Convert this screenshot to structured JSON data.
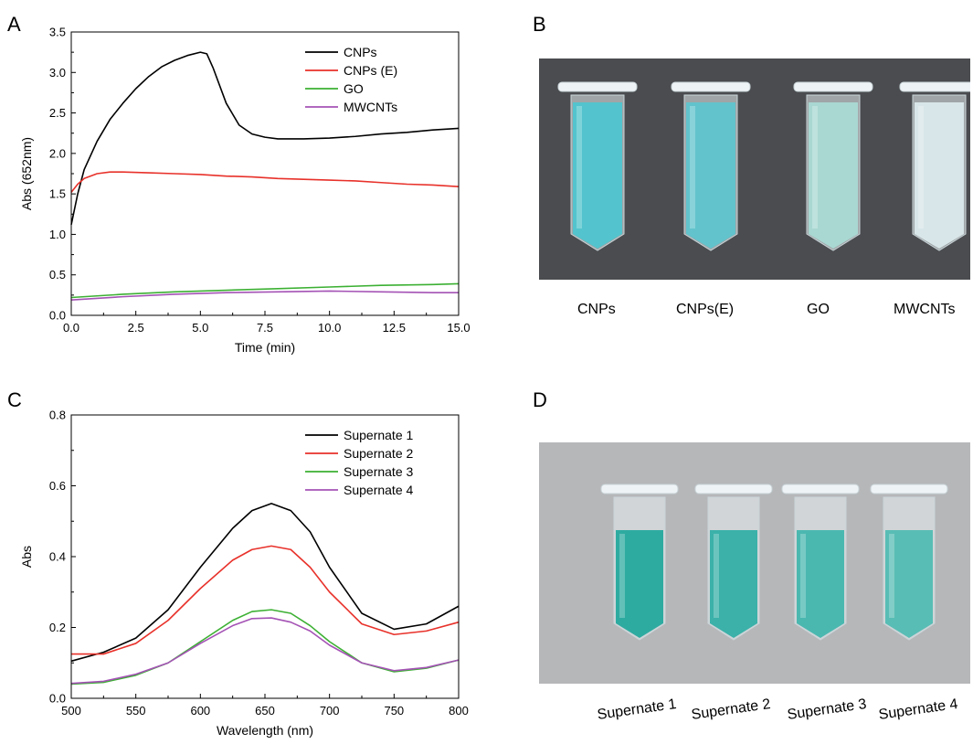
{
  "panels": {
    "a": "A",
    "b": "B",
    "c": "C",
    "d": "D"
  },
  "chart_data": [
    {
      "type": "line",
      "panel": "A",
      "title": "",
      "xlabel": "Time (min)",
      "ylabel": "Abs (652nm)",
      "xlim": [
        0,
        15
      ],
      "ylim": [
        0,
        3.5
      ],
      "xticks": [
        "0.0",
        "2.5",
        "5.0",
        "7.5",
        "10.0",
        "12.5",
        "15.0"
      ],
      "yticks": [
        "0.0",
        "0.5",
        "1.0",
        "1.5",
        "2.0",
        "2.5",
        "3.0",
        "3.5"
      ],
      "grid": false,
      "legend_position": "top-right",
      "series": [
        {
          "name": "CNPs",
          "color": "#000000",
          "x": [
            0,
            0.25,
            0.5,
            1,
            1.5,
            2,
            2.5,
            3,
            3.5,
            4,
            4.5,
            5,
            5.25,
            5.5,
            6,
            6.5,
            7,
            7.5,
            8,
            9,
            10,
            11,
            12,
            13,
            14,
            15
          ],
          "y": [
            1.12,
            1.5,
            1.8,
            2.15,
            2.42,
            2.62,
            2.8,
            2.95,
            3.07,
            3.15,
            3.21,
            3.25,
            3.23,
            3.05,
            2.62,
            2.35,
            2.24,
            2.2,
            2.18,
            2.18,
            2.19,
            2.21,
            2.24,
            2.26,
            2.29,
            2.31
          ]
        },
        {
          "name": "CNPs (E)",
          "color": "#e8312a",
          "x": [
            0,
            0.25,
            0.5,
            1,
            1.5,
            2,
            3,
            4,
            5,
            6,
            7,
            8,
            9,
            10,
            11,
            12,
            13,
            14,
            15
          ],
          "y": [
            1.52,
            1.62,
            1.69,
            1.75,
            1.77,
            1.77,
            1.76,
            1.75,
            1.74,
            1.72,
            1.71,
            1.69,
            1.68,
            1.67,
            1.66,
            1.64,
            1.62,
            1.61,
            1.59
          ]
        },
        {
          "name": "GO",
          "color": "#3cb033",
          "x": [
            0,
            2,
            4,
            6,
            8,
            10,
            12,
            14,
            15
          ],
          "y": [
            0.22,
            0.26,
            0.29,
            0.31,
            0.33,
            0.35,
            0.37,
            0.38,
            0.39
          ]
        },
        {
          "name": "MWCNTs",
          "color": "#a452b5",
          "x": [
            0,
            2,
            4,
            6,
            8,
            10,
            12,
            14,
            15
          ],
          "y": [
            0.19,
            0.23,
            0.26,
            0.28,
            0.29,
            0.3,
            0.29,
            0.28,
            0.28
          ]
        }
      ]
    },
    {
      "type": "line",
      "panel": "C",
      "title": "",
      "xlabel": "Wavelength (nm)",
      "ylabel": "Abs",
      "xlim": [
        500,
        800
      ],
      "ylim": [
        0,
        0.8
      ],
      "xticks": [
        "500",
        "550",
        "600",
        "650",
        "700",
        "750",
        "800"
      ],
      "yticks": [
        "0.0",
        "0.2",
        "0.4",
        "0.6",
        "0.8"
      ],
      "grid": false,
      "legend_position": "top-right",
      "series": [
        {
          "name": "Supernate 1",
          "color": "#000000",
          "x": [
            500,
            525,
            550,
            575,
            600,
            625,
            640,
            655,
            670,
            685,
            700,
            725,
            750,
            775,
            800
          ],
          "y": [
            0.105,
            0.13,
            0.17,
            0.25,
            0.37,
            0.48,
            0.53,
            0.55,
            0.53,
            0.47,
            0.37,
            0.24,
            0.195,
            0.21,
            0.26
          ]
        },
        {
          "name": "Supernate 2",
          "color": "#e8312a",
          "x": [
            500,
            525,
            550,
            575,
            600,
            625,
            640,
            655,
            670,
            685,
            700,
            725,
            750,
            775,
            800
          ],
          "y": [
            0.125,
            0.125,
            0.155,
            0.22,
            0.31,
            0.39,
            0.42,
            0.43,
            0.42,
            0.37,
            0.3,
            0.21,
            0.18,
            0.19,
            0.215
          ]
        },
        {
          "name": "Supernate 3",
          "color": "#3cb033",
          "x": [
            500,
            525,
            550,
            575,
            600,
            625,
            640,
            655,
            670,
            685,
            700,
            725,
            750,
            775,
            800
          ],
          "y": [
            0.04,
            0.045,
            0.065,
            0.1,
            0.16,
            0.22,
            0.245,
            0.25,
            0.24,
            0.205,
            0.16,
            0.1,
            0.075,
            0.085,
            0.108
          ]
        },
        {
          "name": "Supernate 4",
          "color": "#a452b5",
          "x": [
            500,
            525,
            550,
            575,
            600,
            625,
            640,
            655,
            670,
            685,
            700,
            725,
            750,
            775,
            800
          ],
          "y": [
            0.042,
            0.048,
            0.068,
            0.1,
            0.155,
            0.205,
            0.225,
            0.227,
            0.215,
            0.19,
            0.15,
            0.1,
            0.078,
            0.087,
            0.108
          ]
        }
      ]
    }
  ],
  "photo_b": {
    "labels": [
      "CNPs",
      "CNPs(E)",
      "GO",
      "MWCNTs"
    ],
    "tube_colors": [
      "#4cc7d0",
      "#5cc6cf",
      "#a9dcd6",
      "#dcebef"
    ],
    "background_color": "#4a4c4f"
  },
  "photo_d": {
    "labels": [
      "Supernate 1",
      "Supernate 2",
      "Supernate 3",
      "Supernate 4"
    ],
    "tube_colors": [
      "#1fa79c",
      "#2eaea5",
      "#3fb5ad",
      "#4dbbb2"
    ],
    "background_color": "#b6b7b9"
  }
}
